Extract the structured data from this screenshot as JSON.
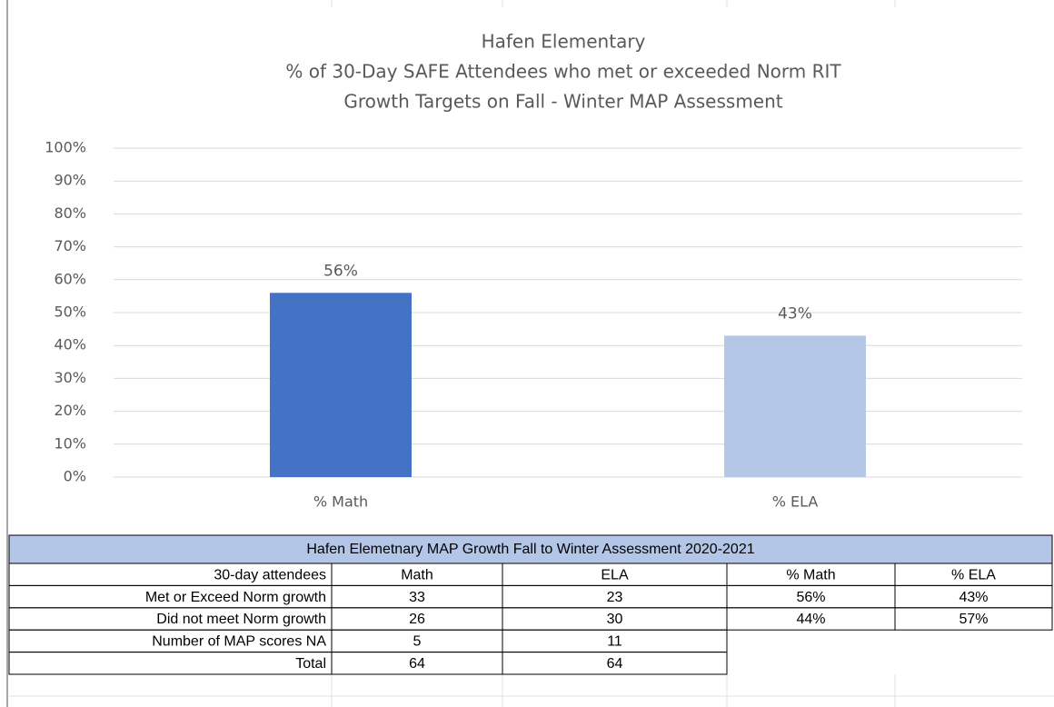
{
  "chart_data": {
    "type": "bar",
    "title": [
      "Hafen Elementary",
      "% of 30-Day SAFE Attendees who met or exceeded Norm RIT",
      "Growth Targets on Fall - Winter MAP Assessment"
    ],
    "categories": [
      "% Math",
      "% ELA"
    ],
    "values": [
      56,
      43
    ],
    "value_labels": [
      "56%",
      "43%"
    ],
    "colors": [
      "#4472c4",
      "#b4c7e7"
    ],
    "ylim": [
      0,
      100
    ],
    "yticks": [
      {
        "value": 0,
        "label": "0%"
      },
      {
        "value": 10,
        "label": "10%"
      },
      {
        "value": 20,
        "label": "20%"
      },
      {
        "value": 30,
        "label": "30%"
      },
      {
        "value": 40,
        "label": "40%"
      },
      {
        "value": 50,
        "label": "50%"
      },
      {
        "value": 60,
        "label": "60%"
      },
      {
        "value": 70,
        "label": "70%"
      },
      {
        "value": 80,
        "label": "80%"
      },
      {
        "value": 90,
        "label": "90%"
      },
      {
        "value": 100,
        "label": "100%"
      }
    ],
    "grid": true
  },
  "table": {
    "title": "Hafen Elemetnary  MAP Growth Fall to Winter Assessment 2020-2021",
    "header": [
      "30-day attendees",
      "Math",
      "ELA",
      "% Math",
      "% ELA"
    ],
    "rows": [
      [
        "Met or Exceed Norm growth",
        33,
        23,
        "56%",
        "43%"
      ],
      [
        "Did not meet Norm growth",
        26,
        30,
        "44%",
        "57%"
      ],
      [
        "Number of MAP scores NA",
        5,
        11
      ],
      [
        "Total",
        64,
        64
      ]
    ]
  }
}
